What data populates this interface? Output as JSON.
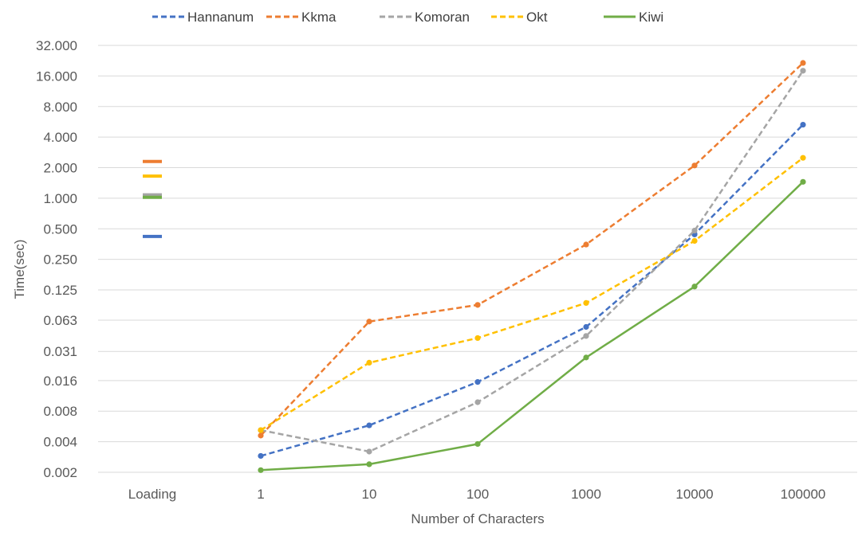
{
  "chart_data": {
    "type": "line",
    "title": "",
    "xlabel": "Number of Characters",
    "ylabel": "Time(sec)",
    "y_scale": "log2",
    "ylim": [
      0.002,
      32.0
    ],
    "grid": "horizontal",
    "legend_position": "top",
    "categories": [
      "Loading",
      "1",
      "10",
      "100",
      "1000",
      "10000",
      "100000"
    ],
    "y_ticks": [
      0.002,
      0.004,
      0.008,
      0.016,
      0.031,
      0.063,
      0.125,
      0.25,
      0.5,
      1.0,
      2.0,
      4.0,
      8.0,
      16.0,
      32.0
    ],
    "y_tick_labels": [
      "0.002",
      "0.004",
      "0.008",
      "0.016",
      "0.031",
      "0.063",
      "0.125",
      "0.250",
      "0.500",
      "1.000",
      "2.000",
      "4.000",
      "8.000",
      "16.000",
      "32.000"
    ],
    "series": [
      {
        "name": "Hannanum",
        "color": "#4472C4",
        "dash": "dashed",
        "values": [
          0.42,
          0.0029,
          0.0058,
          0.0155,
          0.054,
          0.44,
          5.3
        ]
      },
      {
        "name": "Kkma",
        "color": "#ED7D31",
        "dash": "dashed",
        "values": [
          2.3,
          0.0046,
          0.061,
          0.089,
          0.35,
          2.1,
          21.5
        ]
      },
      {
        "name": "Komoran",
        "color": "#A5A5A5",
        "dash": "dashed",
        "values": [
          1.08,
          0.0052,
          0.0032,
          0.0098,
          0.044,
          0.48,
          18.0
        ]
      },
      {
        "name": "Okt",
        "color": "#FFC000",
        "dash": "dashed",
        "values": [
          1.65,
          0.0052,
          0.024,
          0.042,
          0.093,
          0.38,
          2.5
        ]
      },
      {
        "name": "Kiwi",
        "color": "#70AD47",
        "dash": "solid",
        "values": [
          1.02,
          0.0021,
          0.0024,
          0.0038,
          0.027,
          0.135,
          1.45
        ]
      }
    ]
  }
}
